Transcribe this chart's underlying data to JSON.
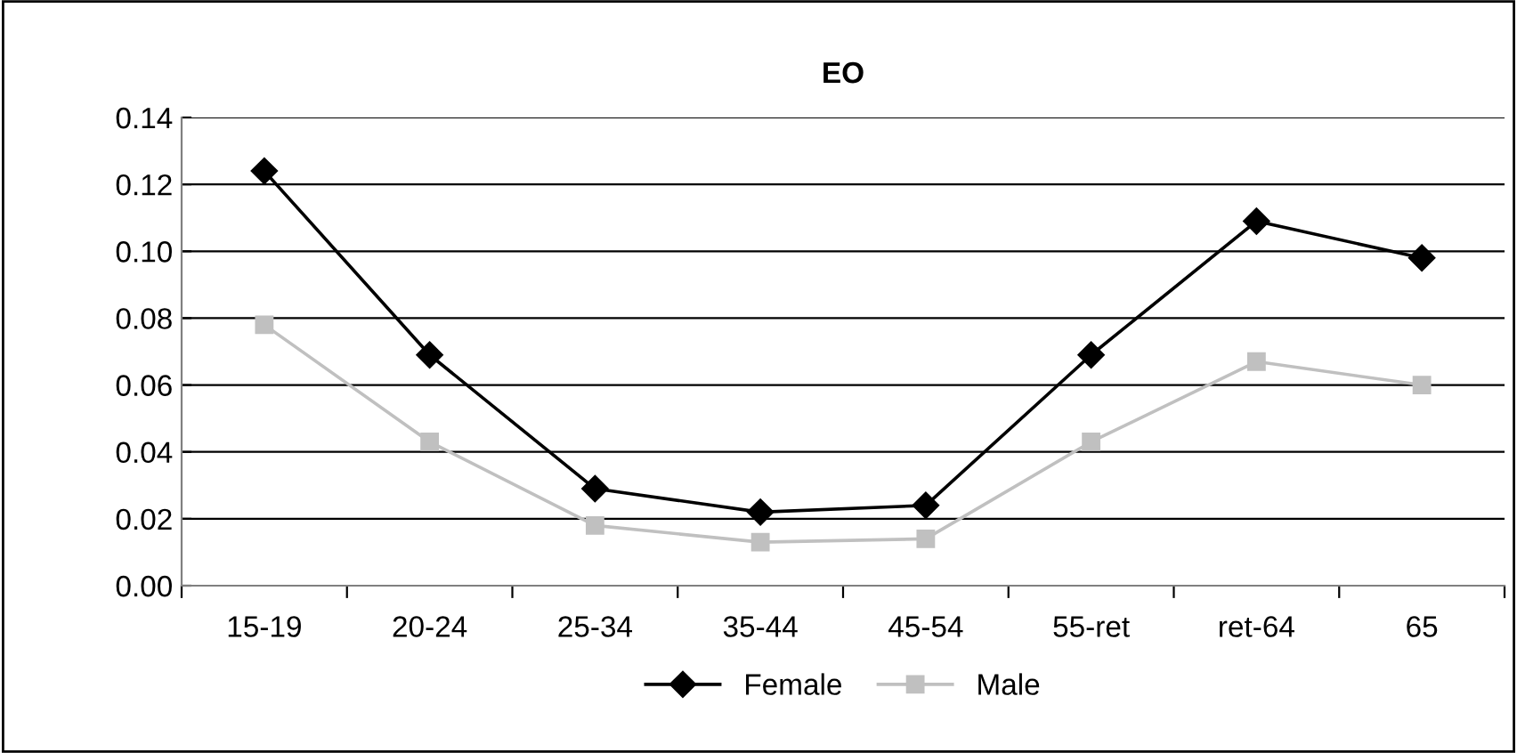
{
  "chart_data": {
    "type": "line",
    "title": "EO",
    "categories": [
      "15-19",
      "20-24",
      "25-34",
      "35-44",
      "45-54",
      "55-ret",
      "ret-64",
      "65"
    ],
    "series": [
      {
        "name": "Female",
        "color": "#000000",
        "marker": "diamond",
        "values": [
          0.124,
          0.069,
          0.029,
          0.022,
          0.024,
          0.069,
          0.109,
          0.098
        ]
      },
      {
        "name": "Male",
        "color": "#c0c0c0",
        "marker": "square",
        "values": [
          0.078,
          0.043,
          0.018,
          0.013,
          0.014,
          0.043,
          0.067,
          0.06
        ]
      }
    ],
    "ylim": [
      0,
      0.14
    ],
    "yticks": [
      {
        "value": 0,
        "label": "0.00"
      },
      {
        "value": 0.02,
        "label": "0.02"
      },
      {
        "value": 0.04,
        "label": "0.04"
      },
      {
        "value": 0.06,
        "label": "0.06"
      },
      {
        "value": 0.08,
        "label": "0.08"
      },
      {
        "value": 0.1,
        "label": "0.10"
      },
      {
        "value": 0.12,
        "label": "0.12"
      },
      {
        "value": 0.14,
        "label": "0.14"
      }
    ],
    "grid": "y",
    "legend": "bottom"
  }
}
